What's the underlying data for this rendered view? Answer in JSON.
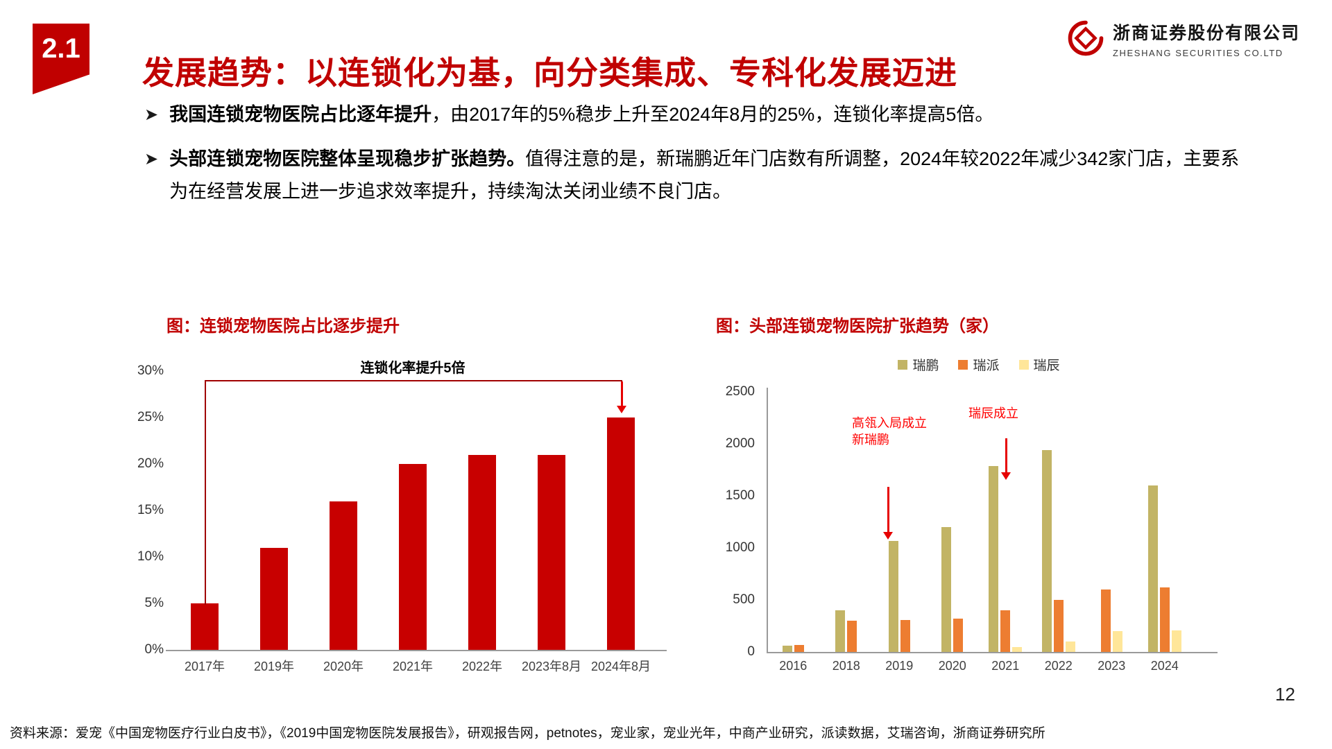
{
  "header": {
    "section_number": "2.1",
    "title": "发展趋势：以连锁化为基，向分类集成、专科化发展迈进",
    "logo": {
      "company_cn": "浙商证券股份有限公司",
      "company_en": "ZHESHANG SECURITIES CO.LTD"
    }
  },
  "bullets": [
    {
      "bold": "我国连锁宠物医院占比逐年提升",
      "rest": "，由2017年的5%稳步上升至2024年8月的25%，连锁化率提高5倍。"
    },
    {
      "bold": "头部连锁宠物医院整体呈现稳步扩张趋势。",
      "rest": "值得注意的是，新瑞鹏近年门店数有所调整，2024年较2022年减少342家门店，主要系为在经营发展上进一步追求效率提升，持续淘汰关闭业绩不良门店。"
    }
  ],
  "chart_data": [
    {
      "type": "bar",
      "title": "图：连锁宠物医院占比逐步提升",
      "categories": [
        "2017年",
        "2019年",
        "2020年",
        "2021年",
        "2022年",
        "2023年8月",
        "2024年8月"
      ],
      "values": [
        5,
        11,
        16,
        20,
        21,
        21,
        25
      ],
      "unit": "%",
      "ylim": [
        0,
        30
      ],
      "ytick_step": 5,
      "bar_color": "#C80000",
      "grid": false,
      "annotation": "连锁化率提升5倍"
    },
    {
      "type": "bar",
      "title": "图：头部连锁宠物医院扩张趋势（家）",
      "categories": [
        "2016",
        "2018",
        "2019",
        "2020",
        "2021",
        "2022",
        "2023",
        "2024"
      ],
      "series": [
        {
          "name": "瑞鹏",
          "color": "#C2B465",
          "values": [
            60,
            400,
            1070,
            1200,
            1790,
            1940,
            null,
            1600
          ]
        },
        {
          "name": "瑞派",
          "color": "#ED7D31",
          "values": [
            70,
            300,
            310,
            320,
            400,
            500,
            600,
            620
          ]
        },
        {
          "name": "瑞辰",
          "color": "#FFE699",
          "values": [
            null,
            null,
            null,
            null,
            50,
            100,
            200,
            210
          ]
        }
      ],
      "ylim": [
        0,
        2500
      ],
      "ytick_step": 500,
      "grid": false,
      "legend_position": "top",
      "annotations": [
        {
          "text": "高瓴入局成立\n新瑞鹏"
        },
        {
          "text": "瑞辰成立"
        }
      ]
    }
  ],
  "footer": {
    "source": "资料来源：爱宠《中国宠物医疗行业白皮书》，《2019中国宠物医院发展报告》，研观报告网，petnotes，宠业家，宠业光年，中商产业研究，派读数据，艾瑞咨询，浙商证券研究所",
    "page_number": "12"
  }
}
